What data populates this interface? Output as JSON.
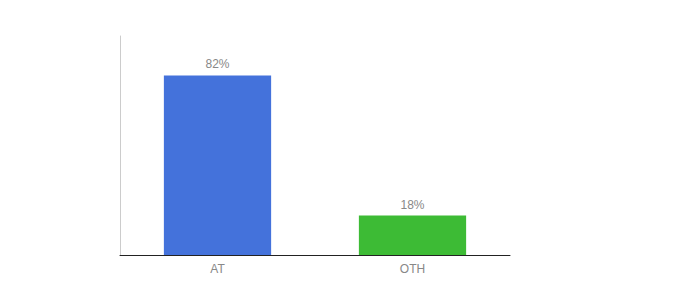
{
  "chart_data": {
    "type": "bar",
    "categories": [
      "AT",
      "OTH"
    ],
    "values": [
      82,
      18
    ],
    "colors": [
      "#4472db",
      "#3dbb35"
    ],
    "value_labels": [
      "82%",
      "18%"
    ],
    "data_labels": true,
    "ylim": [
      0,
      100
    ],
    "grid": false,
    "tick_labels": "x"
  }
}
